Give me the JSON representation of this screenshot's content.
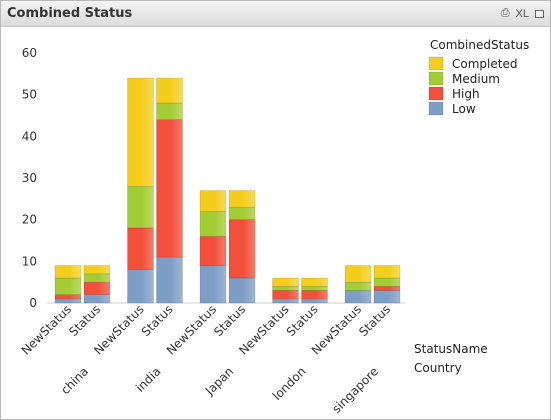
{
  "window": {
    "title": "Combined Status",
    "tools": {
      "print_icon": "print-icon",
      "xl_label": "XL",
      "minimize_icon": "minimize-icon"
    }
  },
  "chart_data": {
    "type": "bar",
    "stacked": true,
    "title": "",
    "ylim": [
      0,
      60
    ],
    "yticks": [
      0,
      10,
      20,
      30,
      40,
      50,
      60
    ],
    "grid": false,
    "groups": [
      "china",
      "india",
      "Japan",
      "london",
      "singapore"
    ],
    "subcategories": [
      "NewStatus",
      "Status"
    ],
    "dimension_labels": [
      "StatusName",
      "Country"
    ],
    "legend": {
      "title": "CombinedStatus",
      "placement": "top-right",
      "entries": [
        "Completed",
        "Medium",
        "High",
        "Low"
      ]
    },
    "series": [
      {
        "name": "Low",
        "color": "#7f9ec6",
        "values": [
          [
            1,
            2
          ],
          [
            8,
            11
          ],
          [
            9,
            6
          ],
          [
            1,
            1
          ],
          [
            3,
            3
          ]
        ]
      },
      {
        "name": "High",
        "color": "#f2503a",
        "values": [
          [
            1,
            3
          ],
          [
            10,
            33
          ],
          [
            7,
            14
          ],
          [
            2,
            2
          ],
          [
            0,
            1
          ]
        ]
      },
      {
        "name": "Medium",
        "color": "#a4cc34",
        "values": [
          [
            4,
            2
          ],
          [
            10,
            4
          ],
          [
            6,
            3
          ],
          [
            1,
            1
          ],
          [
            2,
            2
          ]
        ]
      },
      {
        "name": "Completed",
        "color": "#f5cd1e",
        "values": [
          [
            3,
            2
          ],
          [
            26,
            6
          ],
          [
            5,
            4
          ],
          [
            2,
            2
          ],
          [
            4,
            3
          ]
        ]
      }
    ]
  }
}
